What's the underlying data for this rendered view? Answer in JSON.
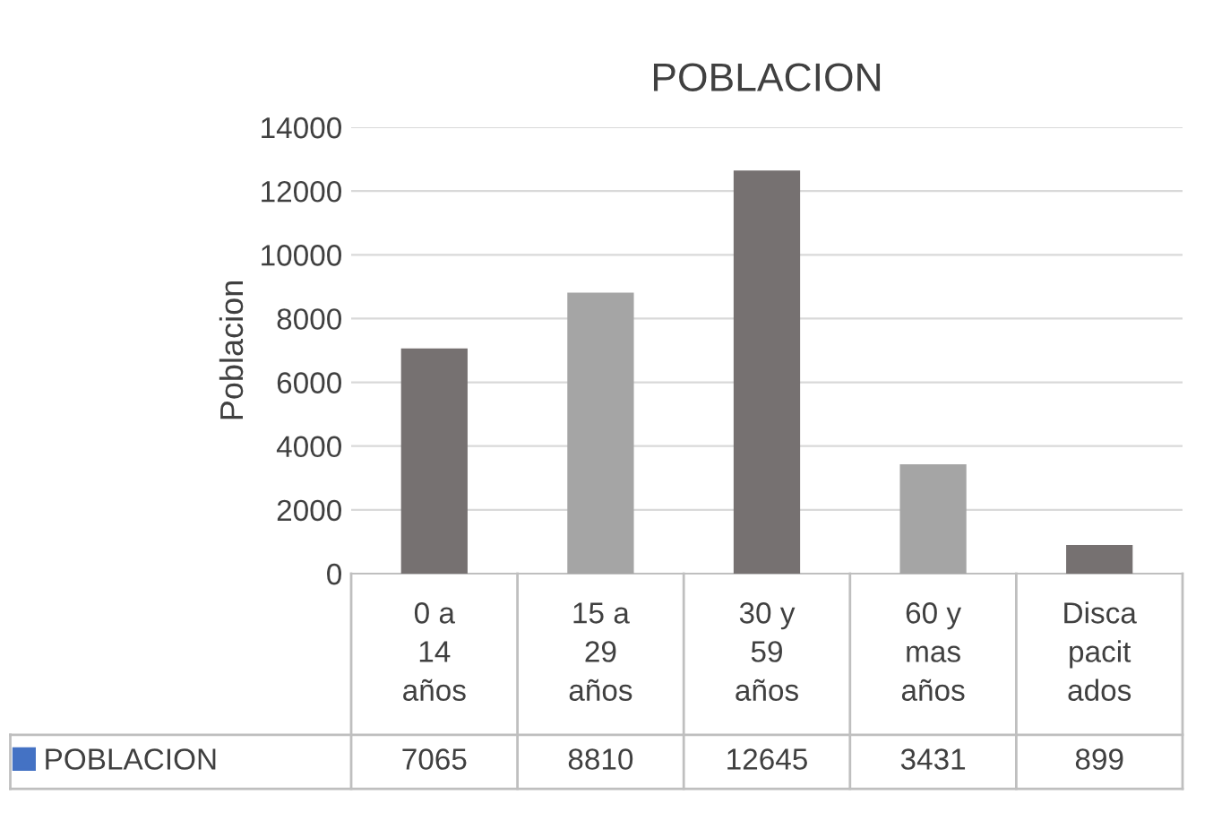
{
  "chart_data": {
    "type": "bar",
    "title": "POBLACION",
    "ylabel": "Poblacion",
    "categories": [
      "0 a 14 años",
      "15 a 29 años",
      "30 y 59 años",
      "60 y mas años",
      "Discapacitados"
    ],
    "series": [
      {
        "name": "POBLACION",
        "color": "#4472c4",
        "colors": [
          "#767171",
          "#a5a5a5",
          "#767171",
          "#a5a5a5",
          "#767171"
        ],
        "values": [
          7065,
          8810,
          12645,
          3431,
          899
        ]
      }
    ],
    "ylim": [
      0,
      14000
    ],
    "yticks": [
      0,
      2000,
      4000,
      6000,
      8000,
      10000,
      12000,
      14000
    ],
    "grid": "y",
    "data_labels": true,
    "legend": "bottom left"
  }
}
